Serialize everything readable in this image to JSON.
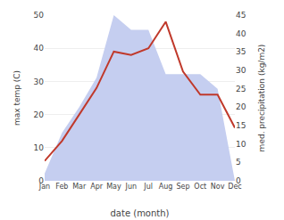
{
  "chart_data": {
    "type": "line",
    "xlabel": "date (month)",
    "ylabel": "max temp (C)",
    "y2label": "med. precipitation (kg/m2)",
    "categories": [
      "Jan",
      "Feb",
      "Mar",
      "Apr",
      "May",
      "Jun",
      "Jul",
      "Aug",
      "Sep",
      "Oct",
      "Nov",
      "Dec"
    ],
    "series": [
      {
        "type": "area",
        "axis": "y2",
        "color": "#c5cef0",
        "values": [
          2,
          13,
          20,
          28,
          45,
          41,
          41,
          29,
          29,
          29,
          25,
          0
        ]
      },
      {
        "type": "line",
        "color": "#c0392b",
        "values": [
          6,
          12,
          20,
          28,
          39,
          38,
          40,
          48,
          33,
          26,
          26,
          16
        ]
      }
    ],
    "ylim": [
      0,
      50
    ],
    "yticks": [
      0,
      10,
      20,
      30,
      40,
      50
    ],
    "y2lim": [
      0,
      45
    ],
    "y2ticks": [
      0,
      5,
      10,
      15,
      20,
      25,
      30,
      35,
      40,
      45
    ],
    "grid": true
  }
}
